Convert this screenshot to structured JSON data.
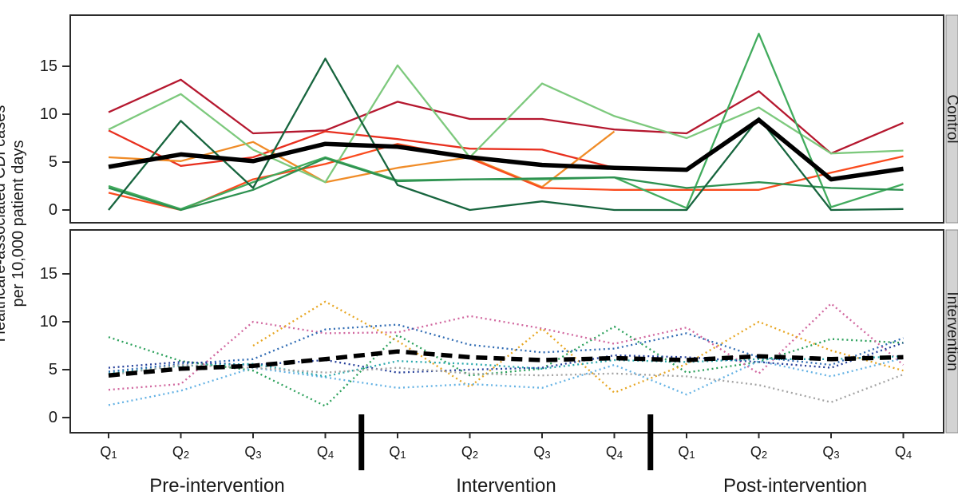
{
  "figure": {
    "y_axis_title_line1": "Healthcare-associated CDI cases",
    "y_axis_title_line2": "per 10,000 patient days",
    "phase_labels": [
      "Pre-intervention",
      "Intervention",
      "Post-intervention"
    ],
    "facet_labels": [
      "Control",
      "Intervention"
    ],
    "colors": {
      "panel_border": "#2b2b2b",
      "strip_background": "#d3d3d3",
      "strip_border": "#8a8a8a",
      "mean_line": "#000000",
      "phase_divider": "#000000"
    }
  },
  "chart_data": [
    {
      "type": "line",
      "facet": "Control",
      "x": [
        "Q1",
        "Q2",
        "Q3",
        "Q4",
        "Q1",
        "Q2",
        "Q3",
        "Q4",
        "Q1",
        "Q2",
        "Q3",
        "Q4"
      ],
      "phase_of_quarters": [
        "Pre-intervention",
        "Pre-intervention",
        "Pre-intervention",
        "Pre-intervention",
        "Intervention",
        "Intervention",
        "Intervention",
        "Intervention",
        "Post-intervention",
        "Post-intervention",
        "Post-intervention",
        "Post-intervention"
      ],
      "phase_breaks_after_index": [
        3,
        7
      ],
      "ylabel": "Healthcare-associated CDI cases per 10,000 patient days",
      "yticks": [
        0,
        5,
        10,
        15
      ],
      "ylim": [
        0,
        20
      ],
      "grid": false,
      "legend": "none",
      "series": [
        {
          "name": "control-site-crimson",
          "color": "#b5182f",
          "line_style": "solid",
          "is_mean": false,
          "values": [
            10.2,
            13.6,
            8.0,
            8.3,
            11.3,
            9.5,
            9.5,
            8.4,
            8.0,
            12.4,
            5.9,
            9.1
          ]
        },
        {
          "name": "control-site-red",
          "color": "#e8301f",
          "line_style": "solid",
          "is_mean": false,
          "values": [
            8.3,
            4.6,
            5.5,
            8.2,
            7.4,
            6.4,
            6.3,
            4.4,
            4.3,
            null,
            null,
            null
          ]
        },
        {
          "name": "control-site-orange",
          "color": "#f08c28",
          "line_style": "solid",
          "is_mean": false,
          "values": [
            5.5,
            5.1,
            7.1,
            2.9,
            4.4,
            5.5,
            2.4,
            8.2,
            null,
            null,
            null,
            null
          ]
        },
        {
          "name": "control-site-orangered",
          "color": "#fa4b1e",
          "line_style": "solid",
          "is_mean": false,
          "values": [
            1.8,
            0.0,
            3.2,
            4.8,
            6.9,
            5.4,
            2.3,
            2.1,
            2.1,
            2.1,
            3.9,
            5.6
          ]
        },
        {
          "name": "control-site-lightgreen",
          "color": "#7dc97d",
          "line_style": "solid",
          "is_mean": false,
          "values": [
            8.4,
            12.1,
            6.3,
            2.9,
            15.1,
            5.5,
            13.2,
            9.8,
            7.5,
            10.7,
            5.9,
            6.2
          ]
        },
        {
          "name": "control-site-mediumgreen",
          "color": "#41ab5d",
          "line_style": "solid",
          "is_mean": false,
          "values": [
            2.5,
            0.1,
            2.9,
            5.5,
            3.1,
            3.2,
            3.2,
            3.4,
            0.2,
            18.4,
            0.3,
            2.7
          ]
        },
        {
          "name": "control-site-green",
          "color": "#2d9150",
          "line_style": "solid",
          "is_mean": false,
          "values": [
            2.3,
            0.0,
            2.1,
            5.4,
            3.0,
            3.2,
            3.3,
            3.4,
            2.3,
            2.9,
            2.3,
            2.1
          ]
        },
        {
          "name": "control-site-darkgreen",
          "color": "#17653e",
          "line_style": "solid",
          "is_mean": false,
          "values": [
            0.0,
            9.3,
            2.3,
            15.8,
            2.6,
            0.0,
            0.9,
            0.0,
            0.0,
            9.6,
            0.0,
            0.1
          ]
        },
        {
          "name": "control-mean",
          "color": "#000000",
          "line_style": "solid",
          "is_mean": true,
          "values": [
            4.5,
            5.8,
            5.1,
            6.9,
            6.6,
            5.5,
            4.7,
            4.4,
            4.2,
            9.4,
            3.2,
            4.3
          ]
        }
      ]
    },
    {
      "type": "line",
      "facet": "Intervention",
      "x": [
        "Q1",
        "Q2",
        "Q3",
        "Q4",
        "Q1",
        "Q2",
        "Q3",
        "Q4",
        "Q1",
        "Q2",
        "Q3",
        "Q4"
      ],
      "phase_of_quarters": [
        "Pre-intervention",
        "Pre-intervention",
        "Pre-intervention",
        "Pre-intervention",
        "Intervention",
        "Intervention",
        "Intervention",
        "Intervention",
        "Post-intervention",
        "Post-intervention",
        "Post-intervention",
        "Post-intervention"
      ],
      "phase_breaks_after_index": [
        3,
        7
      ],
      "ylabel": "Healthcare-associated CDI cases per 10,000 patient days",
      "yticks": [
        0,
        5,
        10,
        15
      ],
      "ylim": [
        0,
        20
      ],
      "grid": false,
      "legend": "none",
      "series": [
        {
          "name": "intervention-site-green",
          "color": "#2aa05a",
          "line_style": "dotted",
          "is_mean": false,
          "values": [
            8.4,
            5.9,
            4.9,
            1.2,
            8.6,
            4.4,
            5.1,
            9.5,
            4.7,
            5.8,
            8.2,
            7.8
          ]
        },
        {
          "name": "intervention-site-pink",
          "color": "#d1679f",
          "line_style": "dotted",
          "is_mean": false,
          "values": [
            2.9,
            3.5,
            10.0,
            8.8,
            8.9,
            10.6,
            9.3,
            7.7,
            9.4,
            4.6,
            11.9,
            5.5
          ]
        },
        {
          "name": "intervention-site-gold",
          "color": "#e7a622",
          "line_style": "dotted",
          "is_mean": false,
          "values": [
            null,
            null,
            7.5,
            12.1,
            8.0,
            3.2,
            9.3,
            2.6,
            5.6,
            10.0,
            7.0,
            4.9
          ]
        },
        {
          "name": "intervention-site-royalblue",
          "color": "#2f6bb3",
          "line_style": "dotted",
          "is_mean": false,
          "values": [
            4.8,
            5.6,
            6.1,
            9.2,
            9.7,
            7.6,
            6.8,
            7.2,
            8.8,
            6.3,
            5.5,
            8.3
          ]
        },
        {
          "name": "intervention-site-navy",
          "color": "#26409a",
          "line_style": "dotted",
          "is_mean": false,
          "values": [
            5.2,
            5.8,
            5.5,
            6.0,
            4.7,
            5.0,
            5.2,
            6.5,
            6.3,
            5.8,
            5.2,
            7.8
          ]
        },
        {
          "name": "intervention-site-skyblue",
          "color": "#64b2e4",
          "line_style": "dotted",
          "is_mean": false,
          "values": [
            1.3,
            2.8,
            5.2,
            4.2,
            3.1,
            3.5,
            3.1,
            5.5,
            2.4,
            5.9,
            4.3,
            6.2
          ]
        },
        {
          "name": "intervention-site-teal",
          "color": "#2aa9ad",
          "line_style": "dotted",
          "is_mean": false,
          "values": [
            4.6,
            5.4,
            5.6,
            4.3,
            5.9,
            5.6,
            5.1,
            6.0,
            5.8,
            6.1,
            6.1,
            6.4
          ]
        },
        {
          "name": "intervention-site-gray",
          "color": "#a3a3a3",
          "line_style": "dotted",
          "is_mean": false,
          "values": [
            4.4,
            5.5,
            5.2,
            4.7,
            5.2,
            4.6,
            4.4,
            4.6,
            4.3,
            3.4,
            1.6,
            4.5
          ]
        },
        {
          "name": "intervention-mean",
          "color": "#000000",
          "line_style": "dashed",
          "is_mean": true,
          "values": [
            4.4,
            5.1,
            5.4,
            6.1,
            6.9,
            6.3,
            6.0,
            6.2,
            6.0,
            6.4,
            6.1,
            6.3
          ]
        }
      ]
    }
  ]
}
